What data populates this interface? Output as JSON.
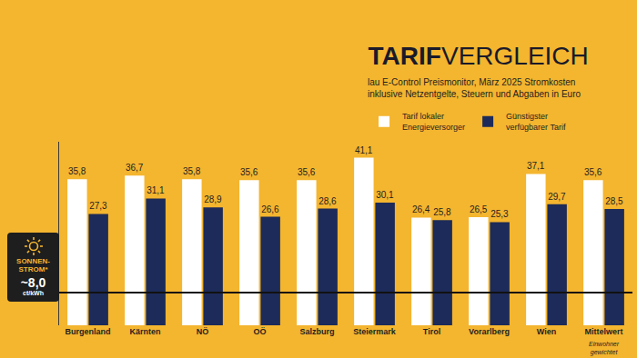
{
  "chart_data": {
    "type": "bar",
    "title": "TARIFVERGLEICH",
    "subtitle": "lau E-Control Preismonitor, März 2025 Stromkosten\ninklusive Netzentgelte, Steuern und Abgaben in Euro",
    "categories": [
      "Burgenland",
      "Kärnten",
      "NÖ",
      "OÖ",
      "Salzburg",
      "Steiermark",
      "Tirol",
      "Vorarlberg",
      "Wien",
      "Mittelwert"
    ],
    "category_note": {
      "category": "Mittelwert",
      "text": "Einwohner gewichtet"
    },
    "series": [
      {
        "name": "Tarif lokaler\nEnergieversorger",
        "color": "#ffffff",
        "values": [
          35.8,
          36.7,
          35.8,
          35.6,
          35.6,
          41.1,
          26.4,
          26.5,
          37.1,
          35.6
        ],
        "value_labels": [
          "35,8",
          "36,7",
          "35,8",
          "35,6",
          "35,6",
          "41,1",
          "26,4",
          "26,5",
          "37,1",
          "35,6"
        ]
      },
      {
        "name": "Günstigster\nverfügbarer Tarif",
        "color": "#1c2b59",
        "values": [
          27.3,
          31.1,
          28.9,
          26.6,
          28.6,
          30.1,
          25.8,
          25.3,
          29.7,
          28.5
        ],
        "value_labels": [
          "27,3",
          "31,1",
          "28,9",
          "26,6",
          "28,6",
          "30,1",
          "25,8",
          "25,3",
          "29,7",
          "28,5"
        ]
      }
    ],
    "reference_line": {
      "label": "SONNEN-STROM*",
      "value": 8.0,
      "value_label": "~8,0",
      "unit": "ct/kWh"
    },
    "ylim": [
      0,
      45
    ],
    "yticks": [
      0
    ],
    "tick_labels": "x",
    "grid": false,
    "data_labels": true,
    "legend": "top right"
  }
}
